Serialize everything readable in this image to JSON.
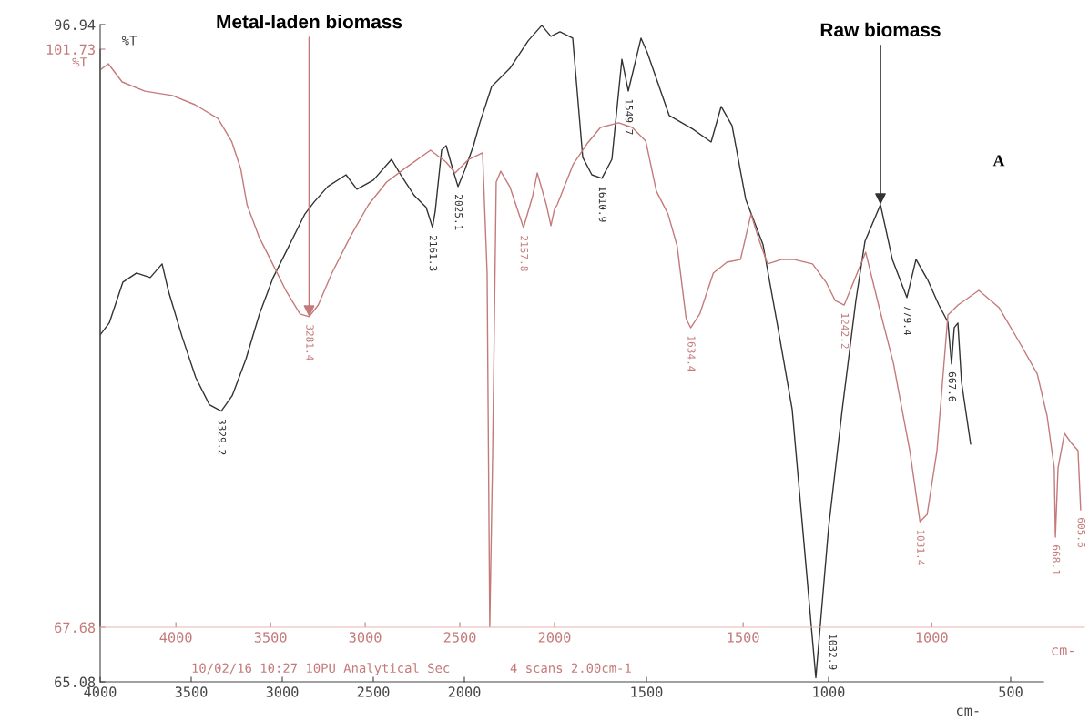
{
  "chart_data": [
    {
      "type": "line",
      "ylabel": "%T",
      "xlim": [
        4000,
        2000
      ],
      "xticks": [
        4000,
        3500,
        3000,
        2500,
        2000
      ],
      "ylim": [
        65.08,
        96.94
      ],
      "yticks": [
        96.94,
        65.08
      ],
      "series": [
        {
          "color": "#333333",
          "x": [
            4000,
            3950,
            3875,
            3800,
            3725,
            3660,
            3625,
            3550,
            3475,
            3400,
            3335,
            3275,
            3200,
            3125,
            3050,
            2975,
            2925,
            2875,
            2825,
            2750,
            2650,
            2590,
            2500,
            2400,
            2350,
            2275,
            2210,
            2175,
            2160,
            2125,
            2100,
            2065,
            2035,
            2000
          ],
          "values": [
            81.9,
            82.48,
            84.46,
            84.9,
            84.68,
            85.34,
            84.02,
            81.81,
            79.83,
            78.51,
            78.2,
            78.95,
            80.71,
            82.92,
            84.68,
            86.0,
            86.89,
            87.77,
            88.34,
            89.09,
            89.66,
            88.96,
            89.4,
            90.41,
            89.66,
            88.65,
            88.08,
            87.11,
            87.9,
            90.85,
            91.07,
            89.97,
            89.09,
            89.84
          ]
        }
      ],
      "annotations": [
        {
          "text": "3329.2",
          "x": 3335,
          "y": 78.2
        },
        {
          "text": "2161.3",
          "x": 2175,
          "y": 87.11
        },
        {
          "text": "2025.1",
          "x": 2035,
          "y": 89.09
        }
      ]
    },
    {
      "type": "line",
      "xlabel": "cm-",
      "xlim": [
        2000,
        410
      ],
      "xticks": [
        1500,
        1000,
        500
      ],
      "ylim": [
        65.08,
        96.94
      ],
      "tick_labels": "x",
      "series": [
        {
          "color": "#333333",
          "x": [
            2000,
            1975,
            1957.5,
            1925,
            1875,
            1825,
            1787.5,
            1762.5,
            1737.5,
            1702.5,
            1675,
            1650,
            1622.5,
            1595,
            1567.5,
            1550,
            1515,
            1497.5,
            1437.5,
            1372.5,
            1322.5,
            1295,
            1265,
            1227.5,
            1180,
            1140,
            1100,
            1062.5,
            1035,
            1000,
            962.5,
            925,
            900,
            857.5,
            825,
            785,
            760,
            727.5,
            697.5,
            672.5,
            662.5,
            655,
            645,
            635,
            610
          ],
          "values": [
            89.84,
            91.07,
            92.18,
            93.94,
            94.82,
            96.15,
            96.9,
            96.37,
            96.59,
            96.28,
            90.5,
            89.66,
            89.49,
            90.41,
            95.26,
            93.72,
            96.28,
            95.57,
            92.53,
            91.87,
            91.25,
            92.97,
            92.04,
            88.47,
            86.27,
            82.34,
            78.29,
            70.79,
            65.28,
            72.55,
            78.29,
            83.58,
            86.44,
            88.21,
            85.56,
            83.71,
            85.56,
            84.55,
            83.36,
            82.52,
            80.49,
            82.25,
            82.47,
            79.61,
            76.61
          ]
        }
      ],
      "annotations": [
        {
          "text": "1610.9",
          "x": 1622.5,
          "y": 89.49
        },
        {
          "text": "1549.7",
          "x": 1550,
          "y": 93.72
        },
        {
          "text": "1032.9",
          "x": 1035,
          "y": 65.28
        },
        {
          "text": "779.4",
          "x": 785,
          "y": 83.71
        },
        {
          "text": "667.6",
          "x": 662.5,
          "y": 80.49
        },
        {
          "text": "Raw biomass",
          "x": 857.5,
          "y": 88.21
        },
        "A"
      ]
    },
    {
      "type": "line",
      "ylabel": "%T",
      "xlim": [
        4400,
        2000
      ],
      "xticks": [
        4000,
        3500,
        3000,
        2500,
        2000
      ],
      "ylim": [
        67.68,
        101.73
      ],
      "yticks": [
        101.73,
        67.68
      ],
      "series": [
        {
          "color": "#c47a7a",
          "x": [
            4400,
            4357,
            4284,
            4164,
            4019,
            3899,
            3778,
            3706,
            3658,
            3624,
            3561,
            3489,
            3417,
            3344,
            3296,
            3248,
            3176,
            3079,
            2983,
            2887,
            2790,
            2655,
            2573,
            2525,
            2453,
            2380,
            2356,
            2342,
            2327,
            2308,
            2284,
            2236,
            2164,
            2115,
            2091,
            2043,
            2019,
            2000
          ],
          "values": [
            100.5,
            100.87,
            99.8,
            99.26,
            99.0,
            98.46,
            97.65,
            96.31,
            94.71,
            92.56,
            90.68,
            89.08,
            87.47,
            86.13,
            85.97,
            86.66,
            88.54,
            90.68,
            92.56,
            93.9,
            94.71,
            95.78,
            95.08,
            94.44,
            95.24,
            95.62,
            88.54,
            67.68,
            77.81,
            93.9,
            94.54,
            93.63,
            91.22,
            93.1,
            94.44,
            92.56,
            91.33,
            92.3
          ]
        }
      ],
      "annotations": [
        {
          "text": "3281.4",
          "x": 3296,
          "y": 85.97
        },
        {
          "text": "2157.8",
          "x": 2164,
          "y": 91.22
        },
        {
          "text": "Metal-laden biomass",
          "x": 3296,
          "y": 85.97
        },
        "10/02/16 10:27 10PU Analytical Sec",
        "4 scans 2.00cm-1"
      ]
    },
    {
      "type": "line",
      "xlabel": "cm-",
      "xlim": [
        2000,
        595
      ],
      "xticks": [
        1500,
        1000
      ],
      "ylim": [
        67.68,
        101.73
      ],
      "tick_labels": "x",
      "series": [
        {
          "color": "#c47a7a",
          "x": [
            2000,
            1993,
            1974,
            1950,
            1914,
            1878,
            1830,
            1794,
            1758,
            1730,
            1699,
            1675,
            1651,
            1639,
            1615,
            1579,
            1543,
            1507,
            1479,
            1459,
            1435,
            1399,
            1364,
            1316,
            1280,
            1256,
            1232,
            1175,
            1139,
            1101,
            1084,
            1058,
            1031,
            1012,
            986,
            957,
            930,
            875,
            821,
            766,
            720,
            694,
            675,
            672,
            665,
            648,
            629,
            612,
            605
          ],
          "values": [
            92.3,
            92.56,
            93.63,
            94.97,
            96.15,
            97.12,
            97.39,
            97.12,
            96.31,
            93.37,
            92.02,
            90.15,
            85.86,
            85.32,
            86.13,
            88.54,
            89.18,
            89.34,
            92.02,
            90.58,
            89.08,
            89.34,
            89.34,
            89.08,
            88.0,
            86.93,
            86.66,
            89.77,
            86.5,
            83.18,
            81.14,
            78.08,
            73.9,
            74.33,
            78.08,
            86.07,
            86.66,
            87.52,
            86.5,
            84.41,
            82.59,
            80.12,
            77.06,
            72.99,
            77.06,
            79.1,
            78.51,
            78.08,
            74.6
          ]
        }
      ],
      "annotations": [
        {
          "text": "1634.4",
          "x": 1639,
          "y": 85.32
        },
        {
          "text": "1242.2",
          "x": 1232,
          "y": 86.66
        },
        {
          "text": "1031.4",
          "x": 1031,
          "y": 73.9
        },
        {
          "text": "668.1",
          "x": 672,
          "y": 72.99
        },
        {
          "text": "605.6",
          "x": 605,
          "y": 74.6
        }
      ]
    }
  ]
}
